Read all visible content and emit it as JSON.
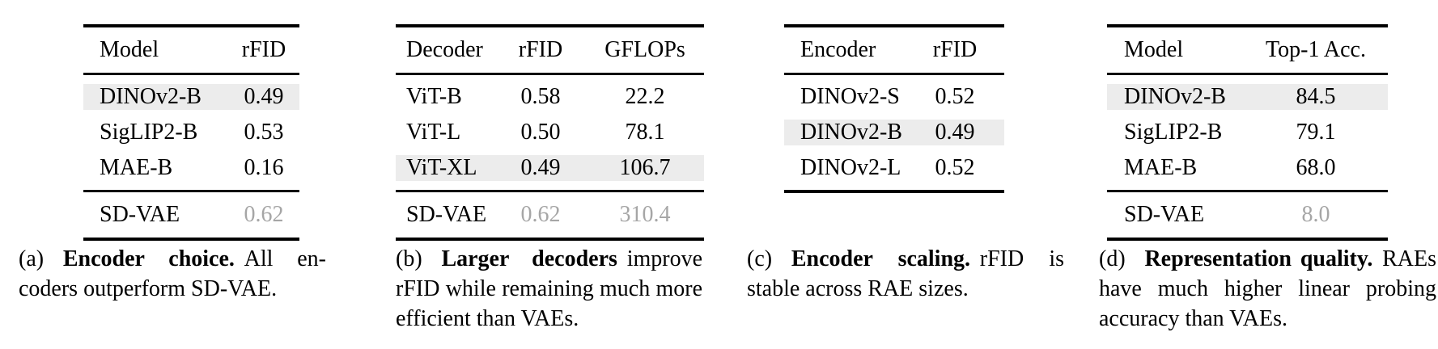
{
  "colors": {
    "background": "#ffffff",
    "rule": "#000000",
    "highlight_row": "#ececec",
    "muted_text": "#a6a6a6",
    "text": "#000000"
  },
  "tables": [
    {
      "id": "a",
      "columns": [
        "Model",
        "rFID"
      ],
      "rows": [
        {
          "cells": [
            "DINOv2-B",
            "0.49"
          ],
          "highlight": true
        },
        {
          "cells": [
            "SigLIP2-B",
            "0.53"
          ],
          "highlight": false
        },
        {
          "cells": [
            "MAE-B",
            "0.16"
          ],
          "highlight": false
        }
      ],
      "baseline_row": {
        "cells": [
          "SD-VAE",
          "0.62"
        ]
      },
      "caption": {
        "label": "(a)",
        "bold": "Encoder choice.",
        "rest": "All en­coders outperform SD-VAE."
      }
    },
    {
      "id": "b",
      "columns": [
        "Decoder",
        "rFID",
        "GFLOPs"
      ],
      "rows": [
        {
          "cells": [
            "ViT-B",
            "0.58",
            "22.2"
          ],
          "highlight": false
        },
        {
          "cells": [
            "ViT-L",
            "0.50",
            "78.1"
          ],
          "highlight": false
        },
        {
          "cells": [
            "ViT-XL",
            "0.49",
            "106.7"
          ],
          "highlight": true
        }
      ],
      "baseline_row": {
        "cells": [
          "SD-VAE",
          "0.62",
          "310.4"
        ]
      },
      "caption": {
        "label": "(b)",
        "bold": "Larger decoders",
        "rest": "improve rFID while remaining much more efficient than VAEs."
      }
    },
    {
      "id": "c",
      "columns": [
        "Encoder",
        "rFID"
      ],
      "rows": [
        {
          "cells": [
            "DINOv2-S",
            "0.52"
          ],
          "highlight": false
        },
        {
          "cells": [
            "DINOv2-B",
            "0.49"
          ],
          "highlight": true
        },
        {
          "cells": [
            "DINOv2-L",
            "0.52"
          ],
          "highlight": false
        }
      ],
      "baseline_row": null,
      "caption": {
        "label": "(c)",
        "bold": "Encoder scaling.",
        "rest": "rFID is stable across RAE sizes."
      }
    },
    {
      "id": "d",
      "columns": [
        "Model",
        "Top-1 Acc."
      ],
      "rows": [
        {
          "cells": [
            "DINOv2-B",
            "84.5"
          ],
          "highlight": true
        },
        {
          "cells": [
            "SigLIP2-B",
            "79.1"
          ],
          "highlight": false
        },
        {
          "cells": [
            "MAE-B",
            "68.0"
          ],
          "highlight": false
        }
      ],
      "baseline_row": {
        "cells": [
          "SD-VAE",
          "8.0"
        ]
      },
      "caption": {
        "label": "(d)",
        "bold": "Representation quality.",
        "rest": "RAEs have much higher linear probing accuracy than VAEs."
      }
    }
  ]
}
